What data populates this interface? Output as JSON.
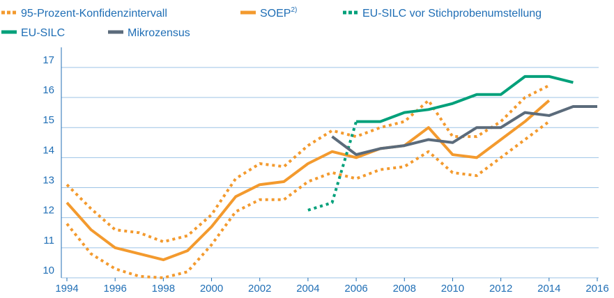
{
  "chart_data": {
    "type": "line",
    "x": [
      1994,
      1995,
      1996,
      1997,
      1998,
      1999,
      2000,
      2001,
      2002,
      2003,
      2004,
      2005,
      2006,
      2007,
      2008,
      2009,
      2010,
      2011,
      2012,
      2013,
      2014,
      2015,
      2016
    ],
    "series": [
      {
        "name": "95-Prozent-Konfidenzintervall",
        "color": "#f39a2e",
        "dashed": true,
        "upper": [
          13.1,
          12.3,
          11.6,
          11.5,
          11.2,
          11.4,
          12.1,
          13.3,
          13.8,
          13.7,
          14.4,
          14.9,
          14.7,
          15.0,
          15.2,
          15.9,
          14.7,
          14.7,
          15.2,
          16.0,
          16.4,
          null,
          null
        ],
        "lower": [
          11.8,
          10.8,
          10.3,
          10.05,
          10.0,
          10.2,
          11.1,
          12.2,
          12.6,
          12.6,
          13.2,
          13.5,
          13.3,
          13.6,
          13.7,
          14.2,
          13.5,
          13.4,
          14.0,
          14.6,
          15.2,
          null,
          null
        ]
      },
      {
        "name": "SOEP",
        "name_superscript": "2)",
        "color": "#f39a2e",
        "dashed": false,
        "values": [
          12.5,
          11.6,
          11.0,
          10.8,
          10.6,
          10.9,
          11.7,
          12.7,
          13.1,
          13.2,
          13.8,
          14.2,
          14.0,
          14.3,
          14.4,
          15.0,
          14.1,
          14.0,
          14.6,
          15.2,
          15.9,
          null,
          null
        ]
      },
      {
        "name": "EU-SILC vor Stichprobenumstellung",
        "color": "#00a07a",
        "dashed": true,
        "values": [
          null,
          null,
          null,
          null,
          null,
          null,
          null,
          null,
          null,
          null,
          12.25,
          12.5,
          15.2,
          null,
          null,
          null,
          null,
          null,
          null,
          null,
          null,
          null,
          null
        ]
      },
      {
        "name": "EU-SILC",
        "color": "#00a07a",
        "dashed": false,
        "values": [
          null,
          null,
          null,
          null,
          null,
          null,
          null,
          null,
          null,
          null,
          null,
          null,
          15.2,
          15.2,
          15.5,
          15.6,
          15.8,
          16.1,
          16.1,
          16.7,
          16.7,
          16.5,
          null
        ]
      },
      {
        "name": "Mikrozensus",
        "color": "#5b6b7b",
        "dashed": false,
        "values": [
          null,
          null,
          null,
          null,
          null,
          null,
          null,
          null,
          null,
          null,
          null,
          14.7,
          14.1,
          14.3,
          14.4,
          14.6,
          14.5,
          15.0,
          15.0,
          15.5,
          15.4,
          15.7,
          15.7
        ]
      }
    ],
    "xlim": [
      1994,
      2016
    ],
    "xticks": [
      1994,
      1996,
      1998,
      2000,
      2002,
      2004,
      2006,
      2008,
      2010,
      2012,
      2014,
      2016
    ],
    "ylim": [
      10,
      17.6
    ],
    "yticks": [
      10,
      11,
      12,
      13,
      14,
      15,
      16,
      17
    ],
    "grid": true
  }
}
